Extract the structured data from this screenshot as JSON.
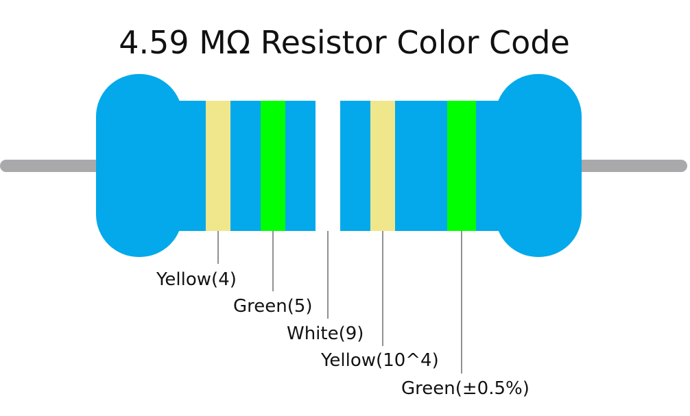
{
  "title": "4.59 MΩ Resistor Color Code",
  "bands": [
    {
      "label": "Yellow(4)",
      "color": "#f0e68c"
    },
    {
      "label": "Green(5)",
      "color": "#00ff00"
    },
    {
      "label": "White(9)",
      "color": "#ffffff"
    },
    {
      "label": "Yellow(10^4)",
      "color": "#f0e68c"
    },
    {
      "label": "Green(±0.5%)",
      "color": "#00ff00"
    }
  ]
}
